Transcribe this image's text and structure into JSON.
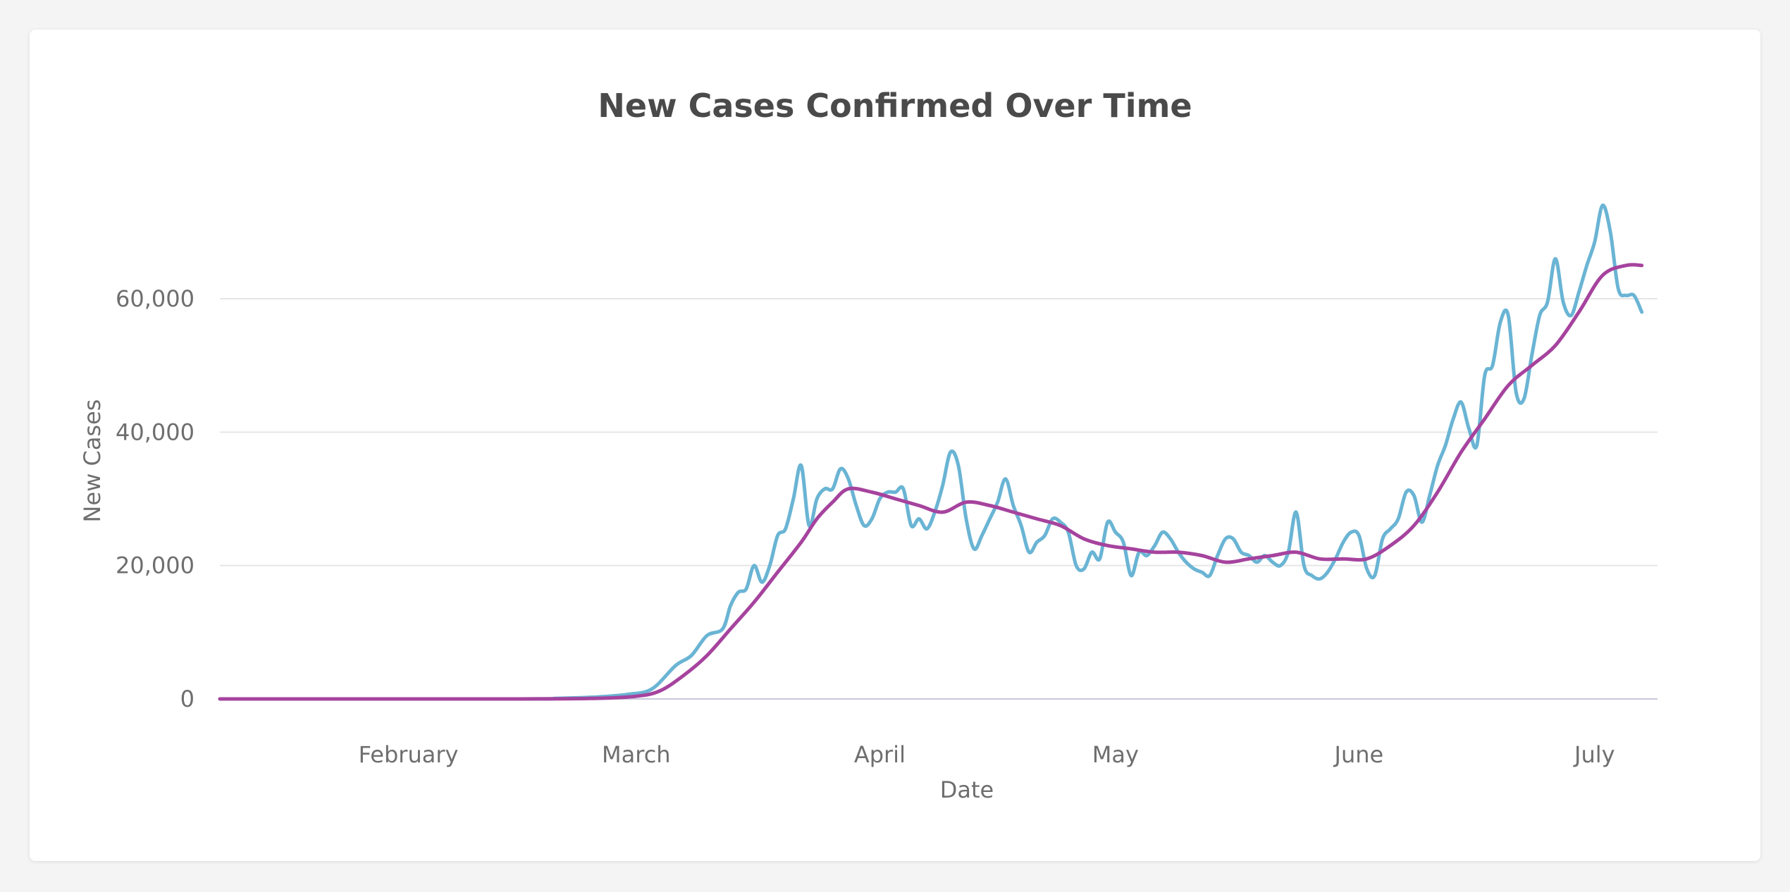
{
  "chart_data": {
    "type": "line",
    "title": "New Cases Confirmed Over Time",
    "xlabel": "Date",
    "ylabel": "New Cases",
    "x_tick_labels": [
      "February",
      "March",
      "April",
      "May",
      "June",
      "July"
    ],
    "y_tick_labels": [
      "0",
      "20,000",
      "40,000",
      "60,000"
    ],
    "y_ticks": [
      0,
      20000,
      40000,
      60000
    ],
    "ylim": [
      0,
      75000
    ],
    "xlim": [
      "2020-01-22",
      "2020-07-23"
    ],
    "grid": true,
    "colors": {
      "daily": "#6ab4d4",
      "average": "#a6439e",
      "grid": "#e6e6e6",
      "axis": "#c8c8dc"
    },
    "series": [
      {
        "key": "daily",
        "points": [
          [
            "2020-01-22",
            0
          ],
          [
            "2020-02-29",
            0
          ],
          [
            "2020-03-05",
            100
          ],
          [
            "2020-03-10",
            300
          ],
          [
            "2020-03-14",
            700
          ],
          [
            "2020-03-17",
            1500
          ],
          [
            "2020-03-20",
            5000
          ],
          [
            "2020-03-22",
            6500
          ],
          [
            "2020-03-24",
            9500
          ],
          [
            "2020-03-26",
            10500
          ],
          [
            "2020-03-27",
            14000
          ],
          [
            "2020-03-28",
            16000
          ],
          [
            "2020-03-29",
            16500
          ],
          [
            "2020-03-30",
            20000
          ],
          [
            "2020-03-31",
            17500
          ],
          [
            "2020-04-01",
            20000
          ],
          [
            "2020-04-02",
            24500
          ],
          [
            "2020-04-03",
            25500
          ],
          [
            "2020-04-04",
            30000
          ],
          [
            "2020-04-05",
            35000
          ],
          [
            "2020-04-06",
            26000
          ],
          [
            "2020-04-07",
            30000
          ],
          [
            "2020-04-08",
            31500
          ],
          [
            "2020-04-09",
            31500
          ],
          [
            "2020-04-10",
            34500
          ],
          [
            "2020-04-11",
            33000
          ],
          [
            "2020-04-12",
            29000
          ],
          [
            "2020-04-13",
            26000
          ],
          [
            "2020-04-14",
            27000
          ],
          [
            "2020-04-15",
            30000
          ],
          [
            "2020-04-16",
            31000
          ],
          [
            "2020-04-17",
            31000
          ],
          [
            "2020-04-18",
            31500
          ],
          [
            "2020-04-19",
            26000
          ],
          [
            "2020-04-20",
            27000
          ],
          [
            "2020-04-21",
            25500
          ],
          [
            "2020-04-22",
            28000
          ],
          [
            "2020-04-23",
            32000
          ],
          [
            "2020-04-24",
            37000
          ],
          [
            "2020-04-25",
            35000
          ],
          [
            "2020-04-26",
            27000
          ],
          [
            "2020-04-27",
            22500
          ],
          [
            "2020-04-28",
            24500
          ],
          [
            "2020-04-29",
            27000
          ],
          [
            "2020-04-30",
            29500
          ],
          [
            "2020-05-01",
            33000
          ],
          [
            "2020-05-02",
            29000
          ],
          [
            "2020-05-03",
            26000
          ],
          [
            "2020-05-04",
            22000
          ],
          [
            "2020-05-05",
            23500
          ],
          [
            "2020-05-06",
            24500
          ],
          [
            "2020-05-07",
            27000
          ],
          [
            "2020-05-08",
            26500
          ],
          [
            "2020-05-09",
            25000
          ],
          [
            "2020-05-10",
            20000
          ],
          [
            "2020-05-11",
            19500
          ],
          [
            "2020-05-12",
            22000
          ],
          [
            "2020-05-13",
            21000
          ],
          [
            "2020-05-14",
            26500
          ],
          [
            "2020-05-15",
            25000
          ],
          [
            "2020-05-16",
            23500
          ],
          [
            "2020-05-17",
            18500
          ],
          [
            "2020-05-18",
            22000
          ],
          [
            "2020-05-19",
            21500
          ],
          [
            "2020-05-20",
            23000
          ],
          [
            "2020-05-21",
            25000
          ],
          [
            "2020-05-22",
            24000
          ],
          [
            "2020-05-23",
            22000
          ],
          [
            "2020-05-24",
            20500
          ],
          [
            "2020-05-25",
            19500
          ],
          [
            "2020-05-26",
            19000
          ],
          [
            "2020-05-27",
            18500
          ],
          [
            "2020-05-28",
            21500
          ],
          [
            "2020-05-29",
            24000
          ],
          [
            "2020-05-30",
            24000
          ],
          [
            "2020-05-31",
            22000
          ],
          [
            "2020-06-01",
            21500
          ],
          [
            "2020-06-02",
            20500
          ],
          [
            "2020-06-03",
            21500
          ],
          [
            "2020-06-04",
            20500
          ],
          [
            "2020-06-05",
            20000
          ],
          [
            "2020-06-06",
            22000
          ],
          [
            "2020-06-07",
            28000
          ],
          [
            "2020-06-08",
            20000
          ],
          [
            "2020-06-09",
            18500
          ],
          [
            "2020-06-10",
            18000
          ],
          [
            "2020-06-11",
            19000
          ],
          [
            "2020-06-12",
            21000
          ],
          [
            "2020-06-13",
            23500
          ],
          [
            "2020-06-14",
            25000
          ],
          [
            "2020-06-15",
            24500
          ],
          [
            "2020-06-16",
            19500
          ],
          [
            "2020-06-17",
            18500
          ],
          [
            "2020-06-18",
            24000
          ],
          [
            "2020-06-19",
            25500
          ],
          [
            "2020-06-20",
            27000
          ],
          [
            "2020-06-21",
            31000
          ],
          [
            "2020-06-22",
            30500
          ],
          [
            "2020-06-23",
            26500
          ],
          [
            "2020-06-24",
            30500
          ],
          [
            "2020-06-25",
            35000
          ],
          [
            "2020-06-26",
            38000
          ],
          [
            "2020-06-27",
            42000
          ],
          [
            "2020-06-28",
            44500
          ],
          [
            "2020-06-29",
            40500
          ],
          [
            "2020-06-30",
            38000
          ],
          [
            "2020-07-01",
            48500
          ],
          [
            "2020-07-02",
            50000
          ],
          [
            "2020-07-03",
            56500
          ],
          [
            "2020-07-04",
            57500
          ],
          [
            "2020-07-05",
            46000
          ],
          [
            "2020-07-06",
            45000
          ],
          [
            "2020-07-07",
            51500
          ],
          [
            "2020-07-08",
            57500
          ],
          [
            "2020-07-09",
            59500
          ],
          [
            "2020-07-10",
            66000
          ],
          [
            "2020-07-11",
            59500
          ],
          [
            "2020-07-12",
            57500
          ],
          [
            "2020-07-13",
            61000
          ],
          [
            "2020-07-14",
            65000
          ],
          [
            "2020-07-15",
            68500
          ],
          [
            "2020-07-16",
            74000
          ],
          [
            "2020-07-17",
            70000
          ],
          [
            "2020-07-18",
            61500
          ],
          [
            "2020-07-19",
            60500
          ],
          [
            "2020-07-20",
            60500
          ],
          [
            "2020-07-21",
            58000
          ]
        ]
      },
      {
        "key": "average",
        "points": [
          [
            "2020-01-22",
            0
          ],
          [
            "2020-02-29",
            0
          ],
          [
            "2020-03-10",
            100
          ],
          [
            "2020-03-15",
            400
          ],
          [
            "2020-03-18",
            1200
          ],
          [
            "2020-03-21",
            3500
          ],
          [
            "2020-03-24",
            6500
          ],
          [
            "2020-03-27",
            10500
          ],
          [
            "2020-03-30",
            14500
          ],
          [
            "2020-04-02",
            19000
          ],
          [
            "2020-04-05",
            23500
          ],
          [
            "2020-04-07",
            27000
          ],
          [
            "2020-04-09",
            29500
          ],
          [
            "2020-04-11",
            31500
          ],
          [
            "2020-04-14",
            31000
          ],
          [
            "2020-04-17",
            30000
          ],
          [
            "2020-04-20",
            29000
          ],
          [
            "2020-04-23",
            28000
          ],
          [
            "2020-04-26",
            29500
          ],
          [
            "2020-04-29",
            29000
          ],
          [
            "2020-05-02",
            28000
          ],
          [
            "2020-05-05",
            27000
          ],
          [
            "2020-05-08",
            26000
          ],
          [
            "2020-05-11",
            24000
          ],
          [
            "2020-05-14",
            23000
          ],
          [
            "2020-05-17",
            22500
          ],
          [
            "2020-05-20",
            22000
          ],
          [
            "2020-05-23",
            22000
          ],
          [
            "2020-05-26",
            21500
          ],
          [
            "2020-05-29",
            20500
          ],
          [
            "2020-06-01",
            21000
          ],
          [
            "2020-06-04",
            21500
          ],
          [
            "2020-06-07",
            22000
          ],
          [
            "2020-06-10",
            21000
          ],
          [
            "2020-06-13",
            21000
          ],
          [
            "2020-06-16",
            21000
          ],
          [
            "2020-06-19",
            23000
          ],
          [
            "2020-06-22",
            26000
          ],
          [
            "2020-06-25",
            31000
          ],
          [
            "2020-06-28",
            37000
          ],
          [
            "2020-07-01",
            42000
          ],
          [
            "2020-07-04",
            47000
          ],
          [
            "2020-07-07",
            50000
          ],
          [
            "2020-07-10",
            53000
          ],
          [
            "2020-07-13",
            58000
          ],
          [
            "2020-07-16",
            63500
          ],
          [
            "2020-07-19",
            65000
          ],
          [
            "2020-07-21",
            65000
          ]
        ]
      }
    ]
  }
}
